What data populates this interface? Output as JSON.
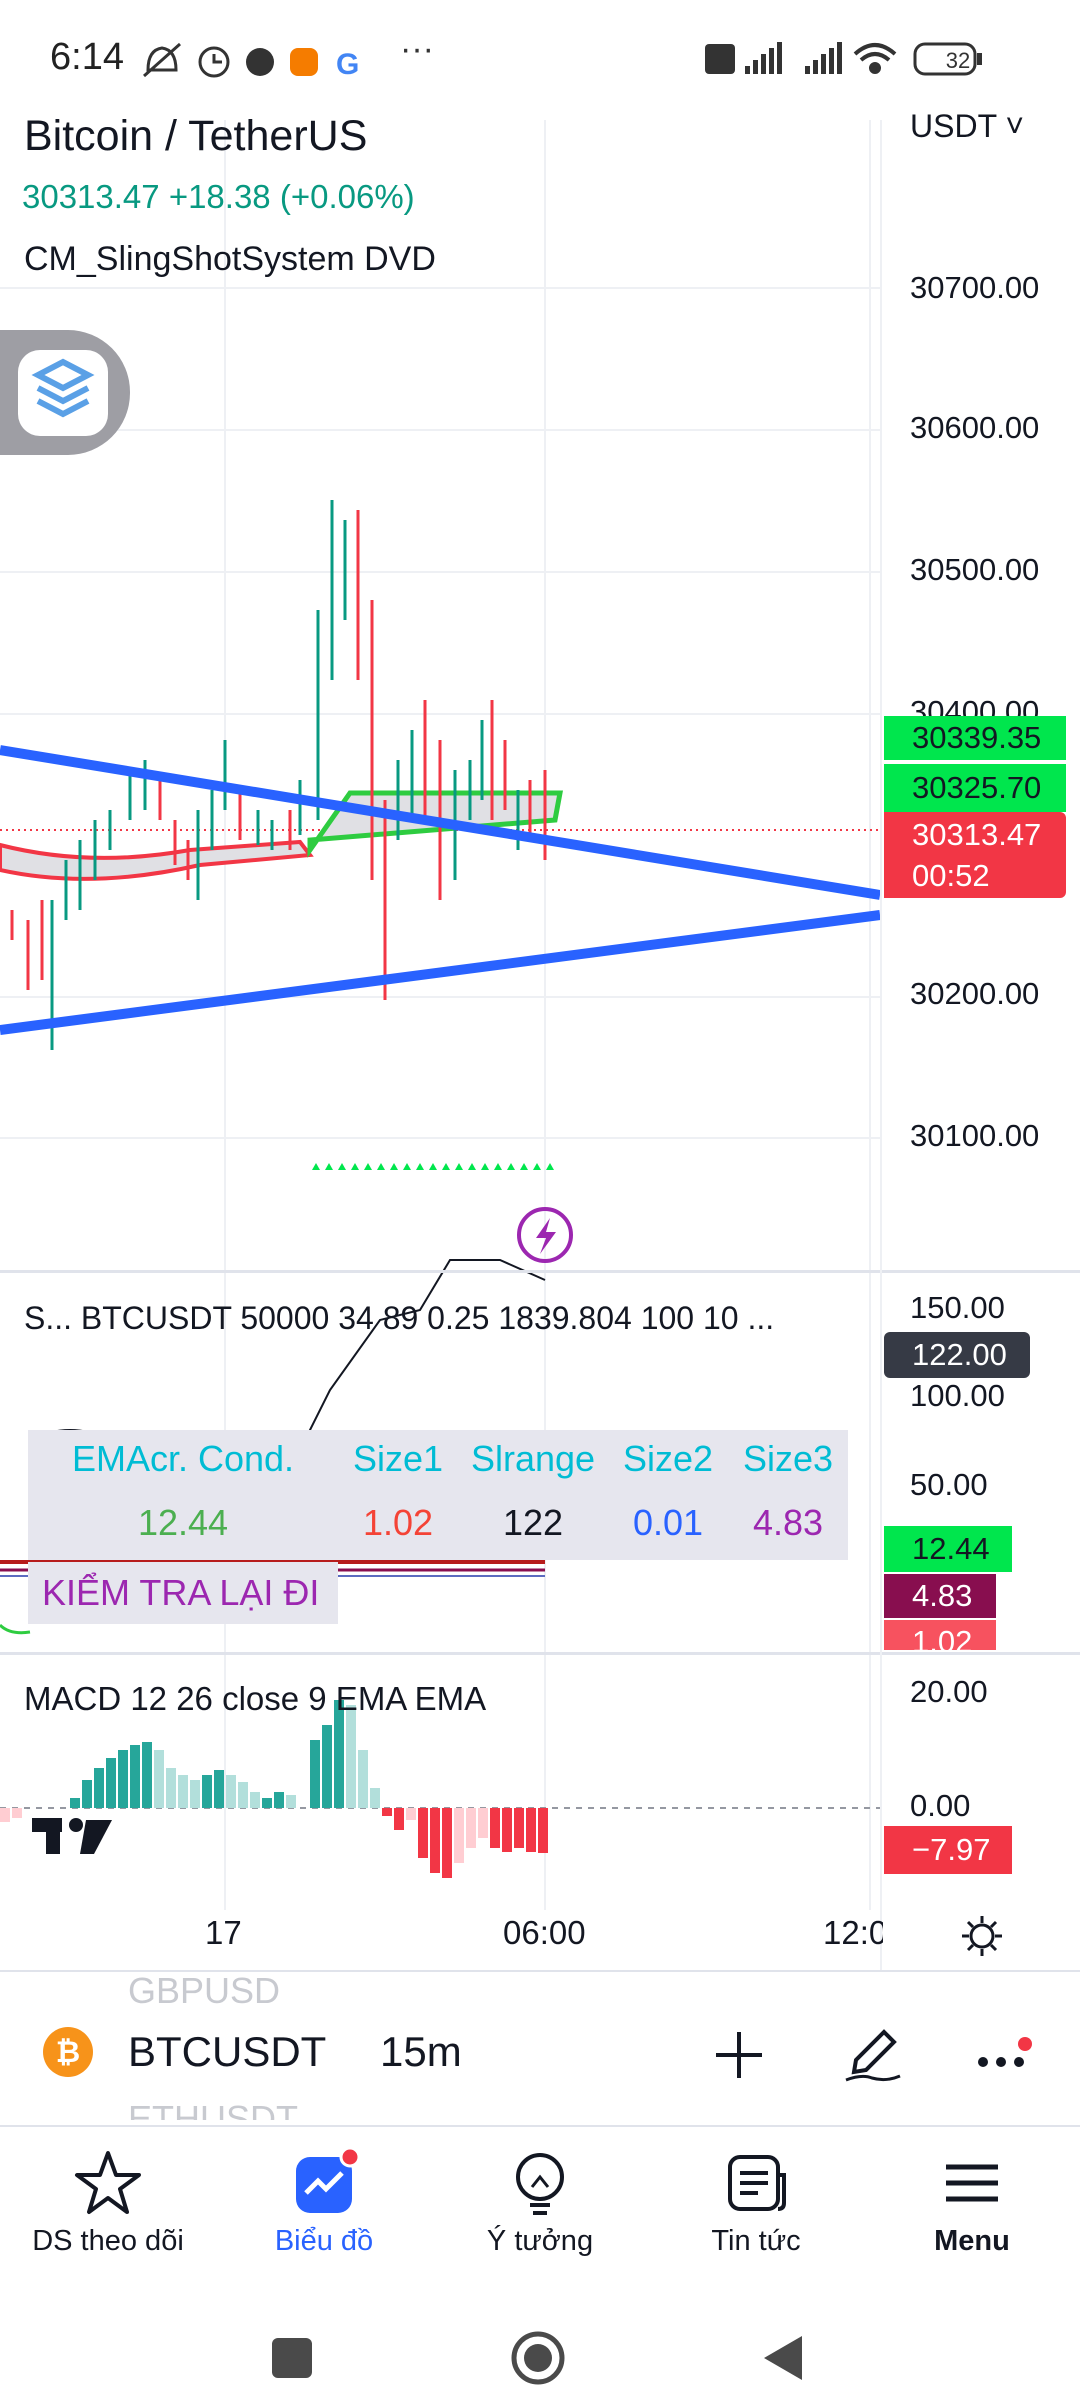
{
  "status_bar": {
    "time": "6:14",
    "battery": "32",
    "icons": [
      "mute-bell-icon",
      "alarm-icon",
      "app-icon",
      "app-icon-orange",
      "google-icon",
      "more-dots-icon",
      "volte-icon",
      "signal-icon",
      "signal-icon",
      "wifi-icon",
      "battery-icon"
    ]
  },
  "header": {
    "title": "Bitcoin / TetherUS",
    "quote_currency": "USDT ˅",
    "last_price": "30313.47",
    "change": "+18.38",
    "change_pct": "(+0.06%)",
    "indicator": "CM_SlingShotSystem DVD"
  },
  "price_axis": {
    "ticks": [
      "30700.00",
      "30600.00",
      "30500.00",
      "30400.00",
      "30200.00",
      "30100.00"
    ],
    "tags": [
      {
        "value": "30339.35",
        "color": "#00e64d"
      },
      {
        "value": "30325.70",
        "color": "#00e64d"
      },
      {
        "value": "30313.47",
        "color": "#f23645"
      },
      {
        "value": "00:52",
        "color": "#f23645"
      }
    ]
  },
  "oscillator": {
    "label": "S... BTCUSDT 50000 34 89 0.25 1839.804 100 10 ...",
    "ticks": [
      "150.00",
      "100.00",
      "50.00"
    ],
    "tags": [
      {
        "value": "122.00",
        "color": "#363a45"
      },
      {
        "value": "12.44",
        "color": "#00e64d"
      },
      {
        "value": "4.83",
        "color": "#880e4f"
      },
      {
        "value": "1.02",
        "color": "#f7525f"
      }
    ],
    "table": {
      "headers": [
        "EMAcr. Cond.",
        "Size1",
        "Slrange",
        "Size2",
        "Size3"
      ],
      "values": [
        "12.44",
        "1.02",
        "122",
        "0.01",
        "4.83"
      ],
      "header_color": "#00bcd4",
      "value_colors": [
        "#4caf50",
        "#f44336",
        "#131722",
        "#2962ff",
        "#9c27b0"
      ]
    },
    "warning": "KIỂM TRA LẠI ĐI"
  },
  "macd": {
    "label": "MACD 12 26 close 9 EMA EMA",
    "ticks": [
      "20.00",
      "0.00"
    ],
    "tag": "−7.97"
  },
  "time_axis": [
    "17",
    "06:00",
    "12:0"
  ],
  "symbol_bar": {
    "symbol": "BTCUSDT",
    "interval": "15m",
    "ghost_above": "GBPUSD",
    "ghost_below": "ETHUSDT"
  },
  "bottom_nav": [
    {
      "label": "DS theo dõi",
      "icon": "star-icon"
    },
    {
      "label": "Biểu đồ",
      "icon": "chart-icon"
    },
    {
      "label": "Ý tưởng",
      "icon": "lightbulb-icon"
    },
    {
      "label": "Tin tức",
      "icon": "news-icon"
    },
    {
      "label": "Menu",
      "icon": "hamburger-icon"
    }
  ],
  "colors": {
    "up": "#089981",
    "down": "#f23645",
    "trendline": "#2962ff",
    "accent": "#2962ff"
  }
}
